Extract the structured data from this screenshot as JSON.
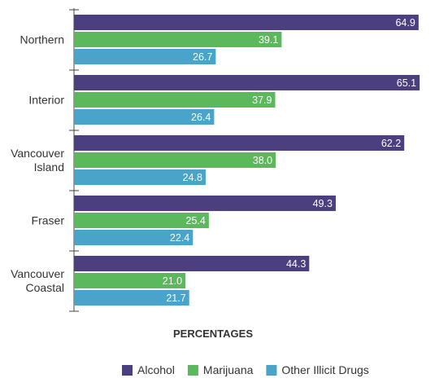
{
  "chart_data": {
    "type": "bar",
    "orientation": "horizontal",
    "categories": [
      [
        "Northern"
      ],
      [
        "Interior"
      ],
      [
        "Vancouver",
        "Island"
      ],
      [
        "Fraser"
      ],
      [
        "Vancouver",
        "Coastal"
      ]
    ],
    "series": [
      {
        "name": "Alcohol",
        "color": "#4b3f80",
        "values": [
          64.9,
          65.1,
          62.2,
          49.3,
          44.3
        ]
      },
      {
        "name": "Marijuana",
        "color": "#5cb85c",
        "values": [
          39.1,
          37.9,
          38.0,
          25.4,
          21.0
        ]
      },
      {
        "name": "Other Illicit Drugs",
        "color": "#4aa3c9",
        "values": [
          26.7,
          26.4,
          24.8,
          22.4,
          21.7
        ]
      }
    ],
    "xlabel": "PERCENTAGES",
    "ylabel": "",
    "xlim": [
      0,
      66
    ],
    "grid": false,
    "legend": "bottom"
  }
}
